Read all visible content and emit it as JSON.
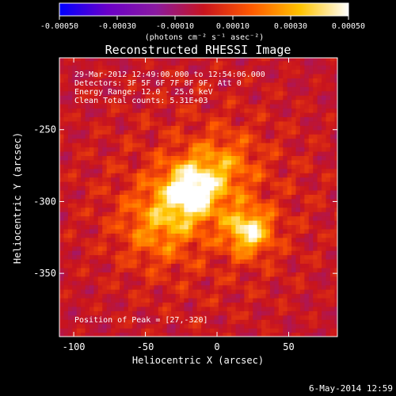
{
  "chart_data": {
    "type": "heatmap",
    "title": "Reconstructed RHESSI Image",
    "xlabel": "Heliocentric X (arcsec)",
    "ylabel": "Heliocentric Y (arcsec)",
    "xlim": [
      -110,
      84
    ],
    "ylim": [
      -394,
      -200
    ],
    "x_ticks": [
      {
        "v": -100,
        "label": "-100"
      },
      {
        "v": -50,
        "label": "-50"
      },
      {
        "v": 0,
        "label": "0"
      },
      {
        "v": 50,
        "label": "50"
      }
    ],
    "y_ticks": [
      {
        "v": -250,
        "label": "-250"
      },
      {
        "v": -300,
        "label": "-300"
      },
      {
        "v": -350,
        "label": "-350"
      }
    ],
    "annotations": [
      "29-Mar-2012 12:49:00.000 to 12:54:06.000",
      "Detectors: 3F 5F 6F 7F 8F 9F, Att 0",
      "Energy Range: 12.0 - 25.0 keV",
      "Clean     Total counts: 5.31E+03"
    ],
    "peak_label": "Position of Peak = [27,-320]",
    "peak": {
      "x": 27,
      "y": -320
    },
    "colorbar": {
      "range": [
        -0.0005,
        0.0005
      ],
      "ticks": [
        {
          "v": -0.0005,
          "label": "-0.00050"
        },
        {
          "v": -0.0003,
          "label": "-0.00030"
        },
        {
          "v": -0.0001,
          "label": "-0.00010"
        },
        {
          "v": 0.0001,
          "label": "0.00010"
        },
        {
          "v": 0.0003,
          "label": "0.00030"
        },
        {
          "v": 0.0005,
          "label": "0.00050"
        }
      ],
      "unit_label": "(photons cm⁻² s⁻¹ asec⁻²)",
      "colors": [
        "#0000ff",
        "#6a00c8",
        "#8a1aa0",
        "#c8141e",
        "#ff5a00",
        "#ffc400",
        "#ffffff"
      ]
    },
    "sources": [
      {
        "x": -18,
        "y": -292,
        "amp": 0.00048,
        "sigma": 14
      },
      {
        "x": 22,
        "y": -320,
        "amp": 0.00042,
        "sigma": 11
      },
      {
        "x": -40,
        "y": -315,
        "amp": 0.00022,
        "sigma": 18
      },
      {
        "x": 5,
        "y": -275,
        "amp": 0.00018,
        "sigma": 16
      }
    ],
    "background": 6e-05,
    "noise_amplitude": 0.00011
  },
  "footer": {
    "date": "6-May-2014 12:59"
  }
}
